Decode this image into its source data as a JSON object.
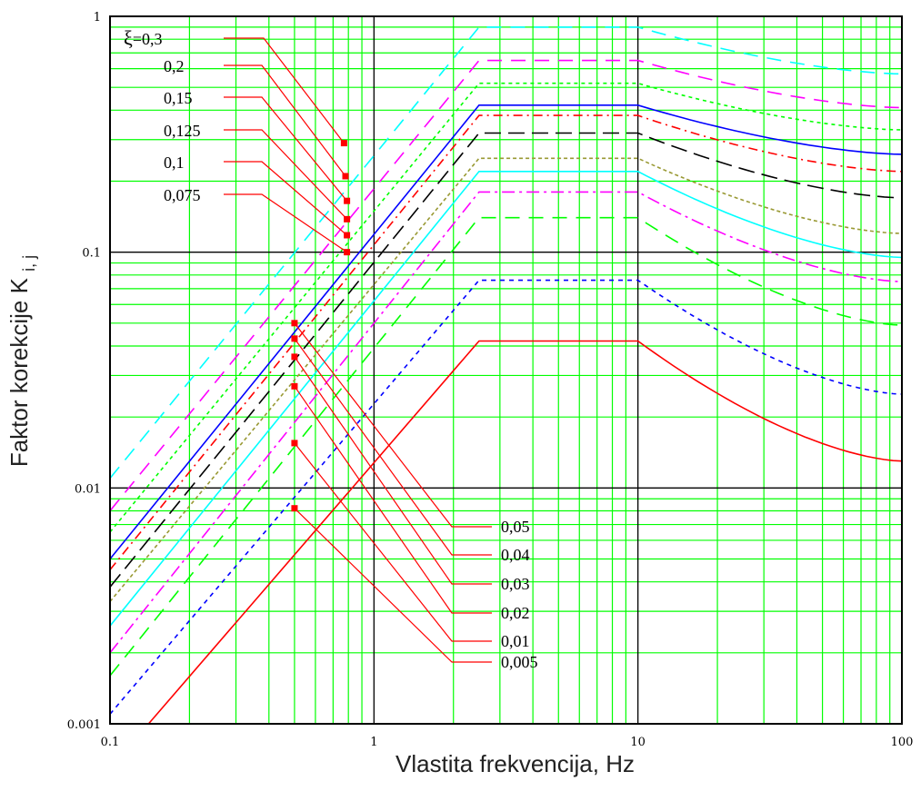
{
  "chart_data": {
    "type": "line",
    "x_scale": "log",
    "y_scale": "log",
    "xlim": [
      0.1,
      100
    ],
    "ylim": [
      0.001,
      1
    ],
    "xlabel": "Vlastita frekvencija, Hz",
    "ylabel": "Faktor korekcije K",
    "ylabel_subscript": "i, j",
    "x_tick_labels": [
      "0.1",
      "1",
      "10",
      "100"
    ],
    "y_tick_labels": [
      "0.001",
      "0.01",
      "0.1",
      "1"
    ],
    "grid": true,
    "grid_color": "#00ff00",
    "major_grid_color": "#000000",
    "xi_symbol": "ξ",
    "xi_equals": "=",
    "series": [
      {
        "label": "0,3",
        "color": "#00ffff",
        "dash": "16,10",
        "x": [
          0.1,
          2.5,
          10,
          100
        ],
        "y": [
          0.011,
          0.9,
          0.9,
          0.57
        ]
      },
      {
        "label": "0,2",
        "color": "#ff00ff",
        "dash": "16,10",
        "x": [
          0.1,
          2.5,
          10,
          100
        ],
        "y": [
          0.008,
          0.65,
          0.65,
          0.41
        ]
      },
      {
        "label": "0,15",
        "color": "#00ff00",
        "dash": "4,4",
        "x": [
          0.1,
          2.5,
          10,
          100
        ],
        "y": [
          0.0065,
          0.52,
          0.52,
          0.33
        ]
      },
      {
        "label": "0,125",
        "color": "#0000ff",
        "dash": "",
        "x": [
          0.1,
          2.5,
          10,
          100
        ],
        "y": [
          0.005,
          0.42,
          0.42,
          0.26
        ]
      },
      {
        "label": "0,1",
        "color": "#ff0000",
        "dash": "10,5,2,5",
        "x": [
          0.1,
          2.5,
          10,
          100
        ],
        "y": [
          0.0045,
          0.38,
          0.38,
          0.22
        ]
      },
      {
        "label": "0,075",
        "color": "#000000",
        "dash": "18,8",
        "x": [
          0.1,
          2.5,
          10,
          100
        ],
        "y": [
          0.0038,
          0.32,
          0.32,
          0.17
        ]
      },
      {
        "label": "0,05",
        "color": "#999933",
        "dash": "4,3",
        "x": [
          0.1,
          2.5,
          10,
          100
        ],
        "y": [
          0.0033,
          0.25,
          0.25,
          0.12
        ]
      },
      {
        "label": "0,04",
        "color": "#00ffff",
        "dash": "",
        "x": [
          0.1,
          2.5,
          10,
          100
        ],
        "y": [
          0.0026,
          0.22,
          0.22,
          0.095
        ]
      },
      {
        "label": "0,03",
        "color": "#ff00ff",
        "dash": "14,5,3,5",
        "x": [
          0.1,
          2.5,
          10,
          100
        ],
        "y": [
          0.002,
          0.18,
          0.18,
          0.075
        ]
      },
      {
        "label": "0,02",
        "color": "#00ff00",
        "dash": "16,10",
        "x": [
          0.1,
          2.5,
          10,
          100
        ],
        "y": [
          0.0016,
          0.14,
          0.14,
          0.049
        ]
      },
      {
        "label": "0,01",
        "color": "#0000ff",
        "dash": "5,5",
        "x": [
          0.1,
          2.5,
          10,
          100
        ],
        "y": [
          0.0011,
          0.076,
          0.076,
          0.025
        ]
      },
      {
        "label": "0,005",
        "color": "#ff0000",
        "dash": "",
        "x": [
          0.14,
          2.5,
          10,
          100
        ],
        "y": [
          0.001,
          0.042,
          0.042,
          0.013
        ]
      }
    ],
    "annotations_top": [
      {
        "text": "ξ=0,3",
        "target": [
          0.77,
          0.29
        ]
      },
      {
        "text": "0,2",
        "target": [
          0.78,
          0.21
        ]
      },
      {
        "text": "0,15",
        "target": [
          0.79,
          0.165
        ]
      },
      {
        "text": "0,125",
        "target": [
          0.79,
          0.138
        ]
      },
      {
        "text": "0,1",
        "target": [
          0.79,
          0.118
        ]
      },
      {
        "text": "0,075",
        "target": [
          0.79,
          0.1
        ]
      }
    ],
    "annotations_bottom": [
      {
        "text": "0,05",
        "target": [
          0.5,
          0.05
        ]
      },
      {
        "text": "0,04",
        "target": [
          0.5,
          0.043
        ]
      },
      {
        "text": "0,03",
        "target": [
          0.5,
          0.036
        ]
      },
      {
        "text": "0,02",
        "target": [
          0.5,
          0.027
        ]
      },
      {
        "text": "0,01",
        "target": [
          0.5,
          0.0155
        ]
      },
      {
        "text": "0,005",
        "target": [
          0.5,
          0.0082
        ]
      }
    ]
  }
}
